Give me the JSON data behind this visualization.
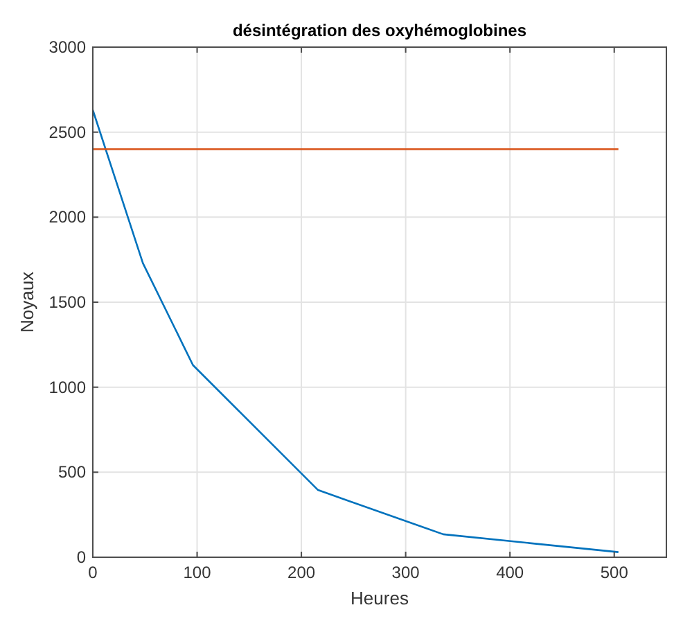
{
  "chart_data": {
    "type": "line",
    "title": "désintégration des oxyhémoglobines",
    "xlabel": "Heures",
    "ylabel": "Noyaux",
    "series": [
      {
        "color": "#0072bd",
        "x": [
          0,
          48,
          96,
          216,
          336,
          504
        ],
        "values": [
          2630,
          1730,
          1130,
          395,
          135,
          30
        ]
      },
      {
        "color": "#d95319",
        "x": [
          0,
          504
        ],
        "values": [
          2400,
          2400
        ]
      }
    ],
    "xlim": [
      0,
      550
    ],
    "xticks": [
      0,
      100,
      200,
      300,
      400,
      500
    ],
    "ylim": [
      0,
      3000
    ],
    "yticks": [
      0,
      500,
      1000,
      1500,
      2000,
      2500,
      3000
    ],
    "grid": true
  }
}
